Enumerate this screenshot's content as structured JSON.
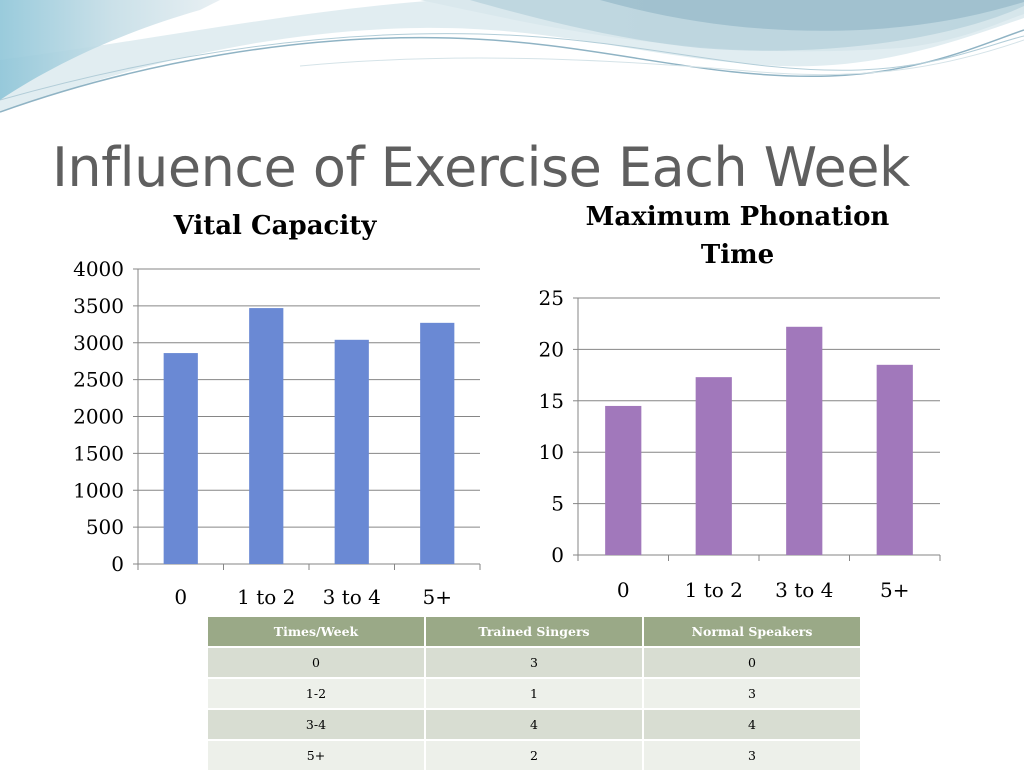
{
  "slide": {
    "title": "Influence of Exercise Each Week"
  },
  "colors": {
    "vital_bar": "#6a89d4",
    "phonation_bar": "#a178bb",
    "table_header": "#9aa987",
    "title_text": "#5f5f5f"
  },
  "chart_data": [
    {
      "type": "bar",
      "title": "Vital Capacity",
      "categories": [
        "0",
        "1 to 2",
        "3 to 4",
        "5+"
      ],
      "values": [
        2860,
        3470,
        3040,
        3270
      ],
      "ylim": [
        0,
        4000
      ],
      "yticks": [
        "0",
        "500",
        "1000",
        "1500",
        "2000",
        "2500",
        "3000",
        "3500",
        "4000"
      ],
      "grid": true,
      "color": "#6a89d4"
    },
    {
      "type": "bar",
      "title": "Maximum Phonation Time",
      "categories": [
        "0",
        "1 to 2",
        "3 to 4",
        "5+"
      ],
      "values": [
        14.5,
        17.3,
        22.2,
        18.5
      ],
      "ylim": [
        0,
        25
      ],
      "yticks": [
        "0",
        "5",
        "10",
        "15",
        "20",
        "25"
      ],
      "grid": true,
      "color": "#a178bb"
    }
  ],
  "table": {
    "headers": [
      "Times/Week",
      "Trained Singers",
      "Normal Speakers"
    ],
    "rows": [
      [
        "0",
        "3",
        "0"
      ],
      [
        "1-2",
        "1",
        "3"
      ],
      [
        "3-4",
        "4",
        "4"
      ],
      [
        "5+",
        "2",
        "3"
      ]
    ]
  }
}
